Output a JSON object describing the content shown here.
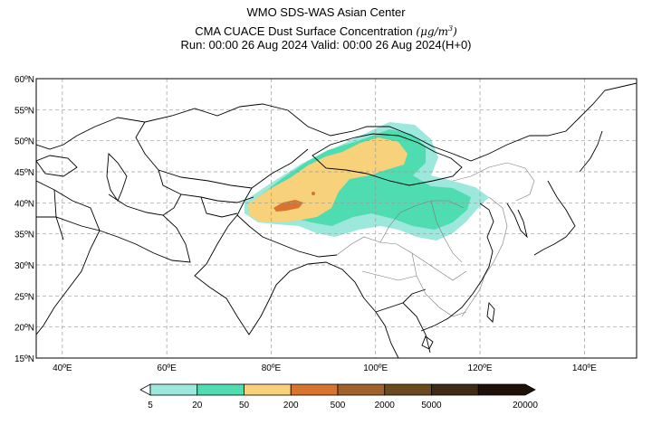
{
  "header": {
    "line1": "WMO SDS-WAS Asian Center",
    "line2": "CMA CUACE Dust Surface Concentration",
    "unit_base": "(μg/m",
    "unit_exp": "3",
    "unit_close": ")",
    "line3": "Run: 00:00 26 Aug 2024    Valid: 00:00 26 Aug 2024(H+0)"
  },
  "map": {
    "lon_range": [
      35,
      150
    ],
    "lat_range": [
      15,
      60
    ],
    "lat_labels": [
      "15ºN",
      "20ºN",
      "25ºN",
      "30ºN",
      "35ºN",
      "40ºN",
      "45ºN",
      "50ºN",
      "55ºN",
      "60ºN"
    ],
    "lat_values": [
      15,
      20,
      25,
      30,
      35,
      40,
      45,
      50,
      55,
      60
    ],
    "lon_labels": [
      "40ºE",
      "60ºE",
      "80ºE",
      "100ºE",
      "120ºE",
      "140ºE"
    ],
    "lon_values": [
      40,
      60,
      80,
      100,
      120,
      140
    ],
    "grid_color": "#9a9a9a"
  },
  "colorbar": {
    "labels": [
      "5",
      "20",
      "50",
      "200",
      "500",
      "2000",
      "5000",
      "20000"
    ],
    "colors": [
      "#9ce8dc",
      "#4fdcb0",
      "#f7d27a",
      "#d8742e",
      "#a0622a",
      "#6b4a1f",
      "#3f2a14",
      "#1e1208"
    ]
  },
  "legend_colors": {
    "light": "#9ce8dc",
    "medium": "#4fdcb0",
    "yellow": "#f7d27a",
    "orange": "#d8742e"
  }
}
